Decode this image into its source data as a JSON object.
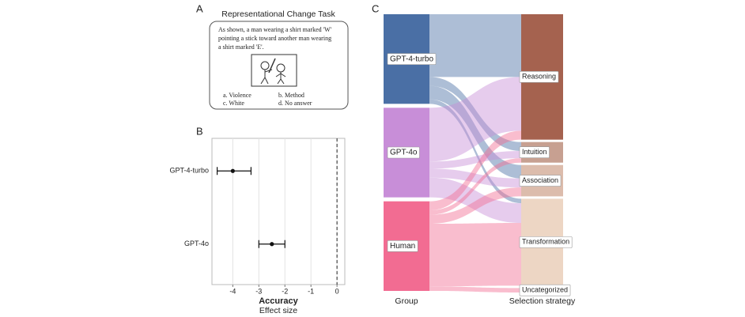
{
  "panel_labels": [
    "A",
    "B",
    "C"
  ],
  "panel_a": {
    "title": "Representational Change Task",
    "prompt_lines": [
      "As shown, a man wearing a shirt marked 'W'",
      "pointing a stick toward another man wearing",
      "a shirt marked 'E'."
    ],
    "options": [
      "a. Violence",
      "b. Method",
      "c. White",
      "d. No  answer"
    ]
  },
  "chart_data": [
    {
      "type": "errorbar",
      "categories": [
        "GPT-4-turbo",
        "GPT-4o"
      ],
      "values": [
        -4.0,
        -2.5
      ],
      "lower": [
        -4.6,
        -3.0
      ],
      "upper": [
        -3.3,
        -2.0
      ],
      "xlim": [
        -4.8,
        0.3
      ],
      "xticks": [
        -4,
        -3,
        -2,
        -1,
        0
      ],
      "grid": true,
      "reference_line": 0,
      "xlabel": "Accuracy",
      "xlabel_sub": "Effect size",
      "color": "#111111"
    },
    {
      "type": "sankey",
      "xlabel_left": "Group",
      "xlabel_right": "Selection strategy",
      "nodes": [
        {
          "name": "GPT-4-turbo",
          "color": "#4a6fa5",
          "side": "left"
        },
        {
          "name": "GPT-4o",
          "color": "#c88ed8",
          "side": "left"
        },
        {
          "name": "Human",
          "color": "#f26c92",
          "side": "left"
        },
        {
          "name": "Reasoning",
          "color": "#a5624f",
          "side": "right"
        },
        {
          "name": "Intuition",
          "color": "#c7a091",
          "side": "right"
        },
        {
          "name": "Association",
          "color": "#dcbcac",
          "side": "right"
        },
        {
          "name": "Transformation",
          "color": "#edd6c4",
          "side": "right"
        },
        {
          "name": "Uncategorized",
          "color": "#e9e1db",
          "side": "right"
        }
      ],
      "links": [
        {
          "source": 0,
          "target": 3,
          "value": 70
        },
        {
          "source": 0,
          "target": 4,
          "value": 10
        },
        {
          "source": 0,
          "target": 5,
          "value": 15
        },
        {
          "source": 0,
          "target": 6,
          "value": 5
        },
        {
          "source": 1,
          "target": 3,
          "value": 60
        },
        {
          "source": 1,
          "target": 4,
          "value": 8
        },
        {
          "source": 1,
          "target": 5,
          "value": 10
        },
        {
          "source": 1,
          "target": 6,
          "value": 22
        },
        {
          "source": 2,
          "target": 3,
          "value": 10
        },
        {
          "source": 2,
          "target": 4,
          "value": 5
        },
        {
          "source": 2,
          "target": 5,
          "value": 10
        },
        {
          "source": 2,
          "target": 6,
          "value": 70
        },
        {
          "source": 2,
          "target": 7,
          "value": 5
        }
      ]
    }
  ]
}
